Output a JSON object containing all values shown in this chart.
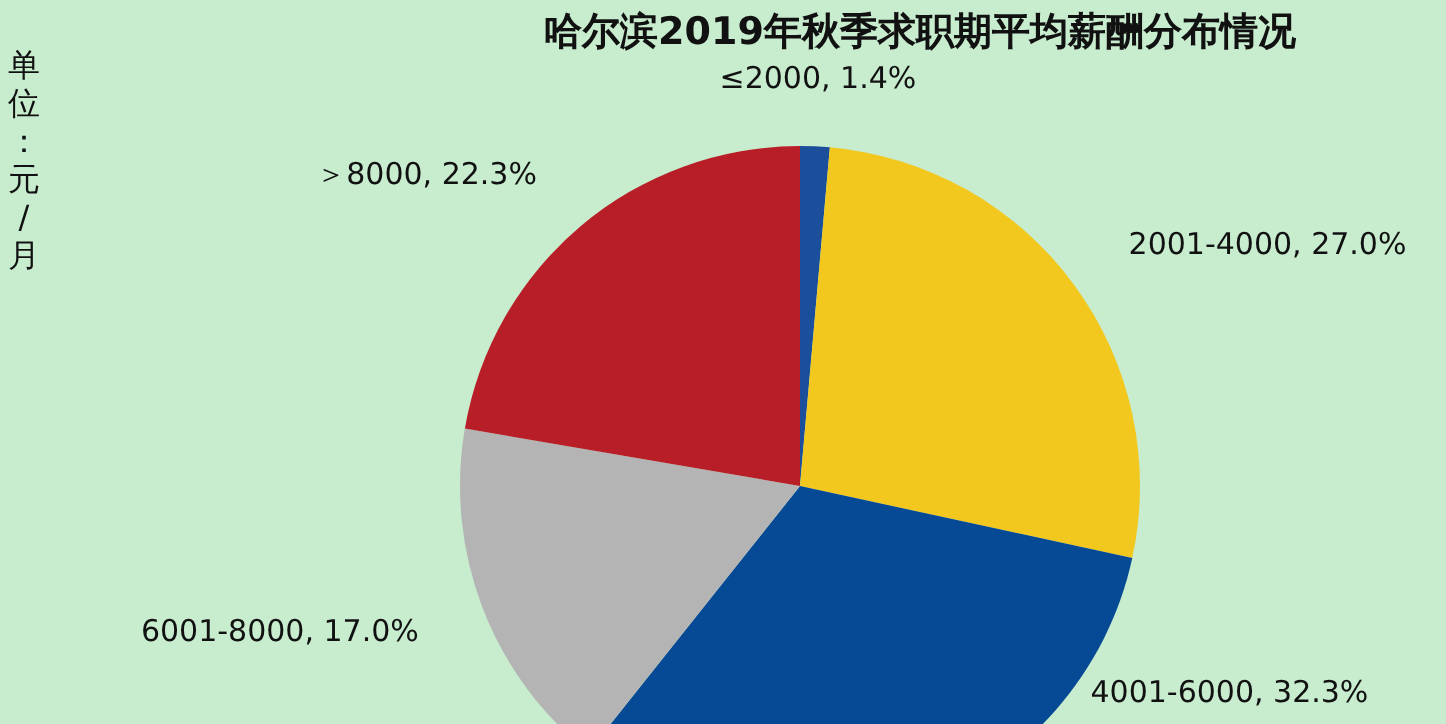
{
  "chart_data": {
    "type": "pie",
    "title": "哈尔滨2019年秋季求职期平均薪酬分布情况",
    "annotations": [
      "单位：元/月"
    ],
    "categories": [
      "≤2000",
      "2001-4000",
      "4001-6000",
      "6001-8000",
      "＞8000"
    ],
    "values": [
      1.4,
      27.0,
      32.3,
      17.0,
      22.3
    ],
    "value_labels": [
      "1.4%",
      "27.0%",
      "32.3%",
      "17.0%",
      "22.3%"
    ],
    "colors": [
      "#1b4f9c",
      "#f2c81f",
      "#064995",
      "#b4b4b4",
      "#b81e27"
    ]
  }
}
